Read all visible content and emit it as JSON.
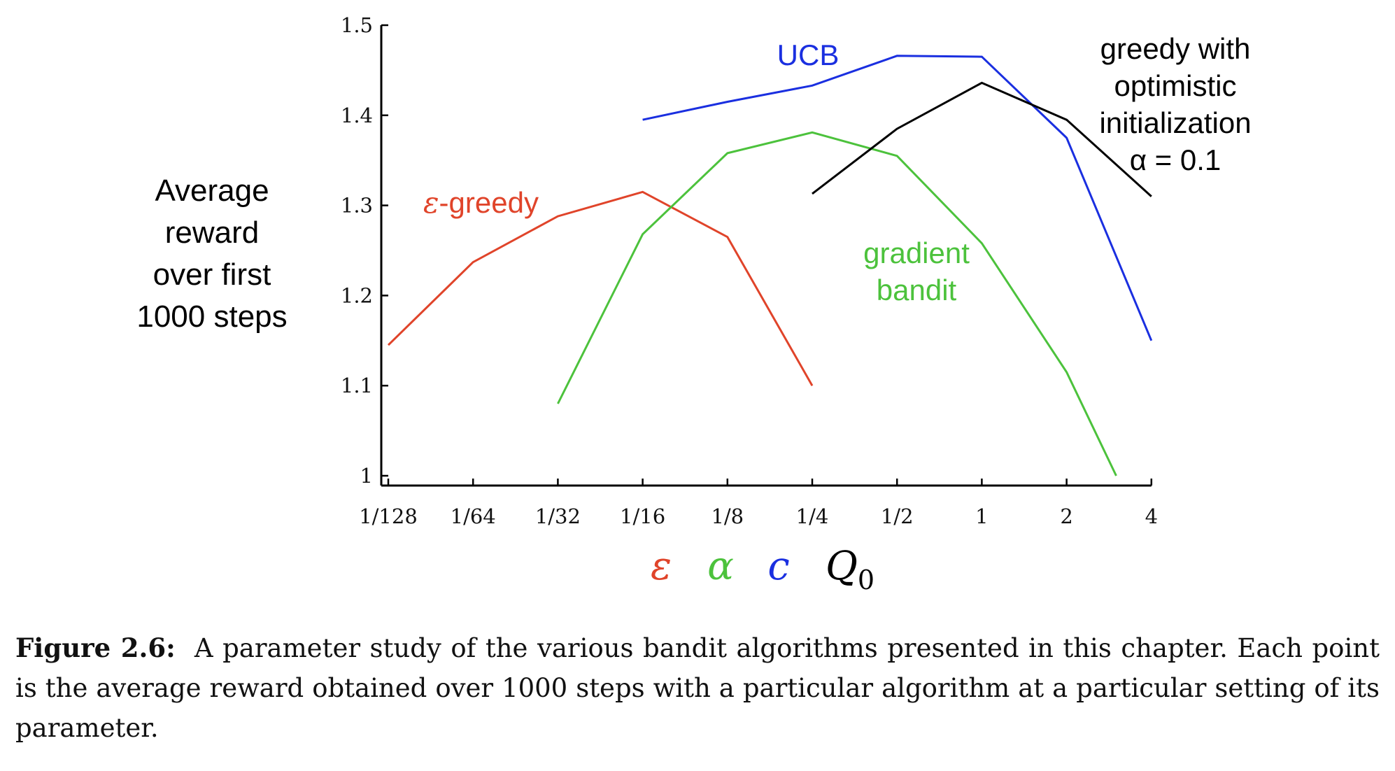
{
  "chart_data": {
    "type": "line",
    "ylabel": [
      "Average",
      "reward",
      "over first",
      "1000 steps"
    ],
    "x_ticks": [
      "1/128",
      "1/64",
      "1/32",
      "1/16",
      "1/8",
      "1/4",
      "1/2",
      "1",
      "2",
      "4"
    ],
    "x_scale": "log2",
    "y_ticks": [
      "1",
      "1.1",
      "1.2",
      "1.3",
      "1.4",
      "1.5"
    ],
    "ylim": [
      1.0,
      1.5
    ],
    "x_parameter_labels": [
      {
        "text": "ε",
        "color": "#e0442a"
      },
      {
        "text": "α",
        "color": "#4cc23c"
      },
      {
        "text": "c",
        "color": "#1a2fe0"
      },
      {
        "text": "Q",
        "sub": "0",
        "color": "#000000"
      }
    ],
    "series": [
      {
        "name": "ε-greedy",
        "color": "#e0442a",
        "x": [
          "1/128",
          "1/64",
          "1/32",
          "1/16",
          "1/8",
          "1/4"
        ],
        "values": [
          1.145,
          1.237,
          1.288,
          1.315,
          1.265,
          1.1
        ]
      },
      {
        "name": "gradient bandit",
        "color": "#4cc23c",
        "x": [
          "1/32",
          "1/16",
          "1/8",
          "1/4",
          "1/2",
          "1",
          "2",
          "3"
        ],
        "values": [
          1.08,
          1.268,
          1.358,
          1.381,
          1.355,
          1.258,
          1.115,
          1.0
        ]
      },
      {
        "name": "UCB",
        "color": "#1a2fe0",
        "x": [
          "1/16",
          "1/8",
          "1/4",
          "1/2",
          "1",
          "2",
          "4"
        ],
        "values": [
          1.395,
          1.415,
          1.433,
          1.466,
          1.465,
          1.375,
          1.15
        ]
      },
      {
        "name": "greedy with optimistic initialization α = 0.1",
        "color": "#000000",
        "x": [
          "1/4",
          "1/2",
          "1",
          "2",
          "4"
        ],
        "values": [
          1.313,
          1.385,
          1.436,
          1.395,
          1.31
        ]
      }
    ],
    "series_labels": {
      "epsilon_greedy": [
        "-greedy"
      ],
      "epsilon_symbol": "ε",
      "ucb": [
        "UCB"
      ],
      "gradient": [
        "gradient",
        "bandit"
      ],
      "optimistic": [
        "greedy with",
        "optimistic",
        "initialization",
        "α = 0.1"
      ]
    }
  },
  "caption": {
    "label": "Figure 2.6:",
    "text": "A parameter study of the various bandit algorithms presented in this chapter. Each point is the average reward obtained over 1000 steps with a particular algorithm at a particular setting of its parameter."
  }
}
